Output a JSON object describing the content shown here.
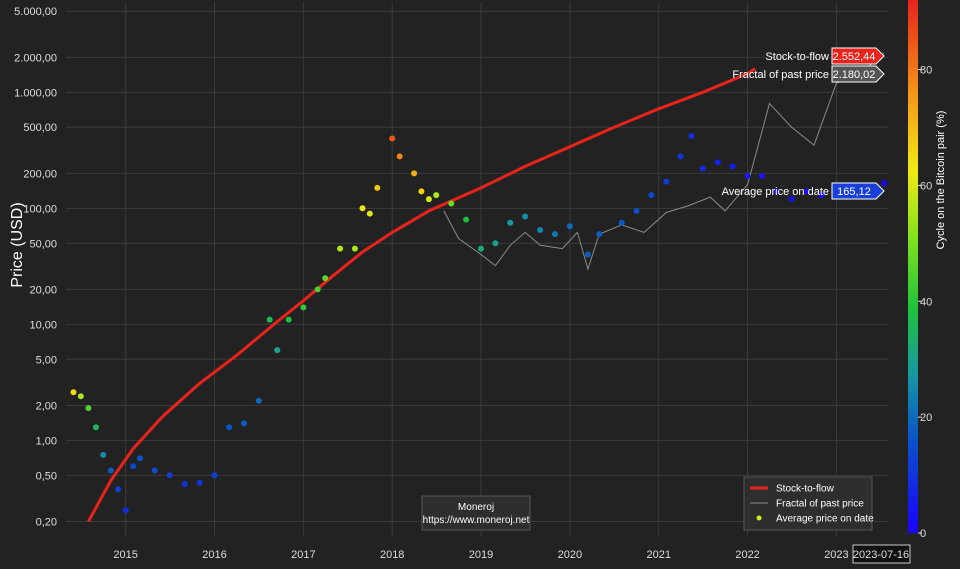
{
  "chart_data": {
    "type": "scatter",
    "ylabel": "Price (USD)",
    "y_scale": "log",
    "ylim": [
      0.15,
      6000
    ],
    "xlim": [
      "2014-05-01",
      "2023-08-01"
    ],
    "y_ticks": [
      {
        "value": 5000,
        "label": "5.000,00"
      },
      {
        "value": 2000,
        "label": "2.000,00"
      },
      {
        "value": 1000,
        "label": "1.000,00"
      },
      {
        "value": 500,
        "label": "500,00"
      },
      {
        "value": 200,
        "label": "200,00"
      },
      {
        "value": 100,
        "label": "100,00"
      },
      {
        "value": 50,
        "label": "50,00"
      },
      {
        "value": 20,
        "label": "20,00"
      },
      {
        "value": 10,
        "label": "10,00"
      },
      {
        "value": 5,
        "label": "5,00"
      },
      {
        "value": 2,
        "label": "2,00"
      },
      {
        "value": 1,
        "label": "1,00"
      },
      {
        "value": 0.5,
        "label": "0,50"
      },
      {
        "value": 0.2,
        "label": "0,20"
      }
    ],
    "x_ticks": [
      "2015",
      "2016",
      "2017",
      "2018",
      "2019",
      "2020",
      "2021",
      "2022",
      "2023"
    ],
    "grid": true,
    "colorbar": {
      "label": "Cycle on the Bitcoin pair (%)",
      "range": [
        0,
        92
      ],
      "ticks": [
        {
          "value": 0,
          "label": "0"
        },
        {
          "value": 20,
          "label": "20"
        },
        {
          "value": 40,
          "label": "40"
        },
        {
          "value": 60,
          "label": "60"
        },
        {
          "value": 80,
          "label": "80"
        }
      ]
    },
    "series": [
      {
        "name": "Stock-to-flow",
        "color": "#e8231c",
        "points": [
          [
            "2014-08-01",
            0.2
          ],
          [
            "2014-11-01",
            0.45
          ],
          [
            "2015-02-01",
            0.85
          ],
          [
            "2015-06-01",
            1.6
          ],
          [
            "2015-11-01",
            3.1
          ],
          [
            "2016-04-01",
            5.4
          ],
          [
            "2016-09-01",
            10
          ],
          [
            "2017-01-01",
            16
          ],
          [
            "2017-05-01",
            26
          ],
          [
            "2017-09-01",
            42
          ],
          [
            "2018-01-01",
            62
          ],
          [
            "2018-06-01",
            95
          ],
          [
            "2019-01-01",
            150
          ],
          [
            "2019-07-01",
            230
          ],
          [
            "2020-01-01",
            340
          ],
          [
            "2020-07-01",
            500
          ],
          [
            "2021-01-01",
            720
          ],
          [
            "2021-07-01",
            1000
          ],
          [
            "2022-01-01",
            1450
          ],
          [
            "2022-02-01",
            1600
          ]
        ]
      },
      {
        "name": "Fractal of past price",
        "color": "#8a8a8a",
        "points": [
          [
            "2018-08-01",
            95
          ],
          [
            "2018-10-01",
            55
          ],
          [
            "2019-01-01",
            40
          ],
          [
            "2019-03-01",
            32
          ],
          [
            "2019-05-01",
            48
          ],
          [
            "2019-07-01",
            62
          ],
          [
            "2019-09-01",
            48
          ],
          [
            "2019-12-01",
            45
          ],
          [
            "2020-02-01",
            62
          ],
          [
            "2020-03-15",
            30
          ],
          [
            "2020-05-01",
            60
          ],
          [
            "2020-08-01",
            72
          ],
          [
            "2020-11-01",
            62
          ],
          [
            "2021-02-01",
            92
          ],
          [
            "2021-05-01",
            105
          ],
          [
            "2021-08-01",
            125
          ],
          [
            "2021-10-01",
            95
          ],
          [
            "2022-01-01",
            160
          ],
          [
            "2022-04-01",
            800
          ],
          [
            "2022-07-01",
            500
          ],
          [
            "2022-10-01",
            350
          ],
          [
            "2023-01-01",
            1200
          ],
          [
            "2023-04-01",
            1400
          ],
          [
            "2023-07-16",
            2180
          ]
        ]
      },
      {
        "name": "Average price on date",
        "color": "#c9f21a",
        "points": [
          [
            "2014-06-01",
            2.6,
            65
          ],
          [
            "2014-07-01",
            2.4,
            55
          ],
          [
            "2014-08-01",
            1.9,
            45
          ],
          [
            "2014-09-01",
            1.3,
            35
          ],
          [
            "2014-10-01",
            0.75,
            25
          ],
          [
            "2014-11-01",
            0.55,
            18
          ],
          [
            "2014-12-01",
            0.38,
            12
          ],
          [
            "2015-01-01",
            0.25,
            8
          ],
          [
            "2015-02-01",
            0.6,
            14
          ],
          [
            "2015-03-01",
            0.7,
            16
          ],
          [
            "2015-05-01",
            0.55,
            15
          ],
          [
            "2015-07-01",
            0.5,
            12
          ],
          [
            "2015-09-01",
            0.42,
            10
          ],
          [
            "2015-11-01",
            0.43,
            10
          ],
          [
            "2016-01-01",
            0.5,
            12
          ],
          [
            "2016-03-01",
            1.3,
            17
          ],
          [
            "2016-05-01",
            1.4,
            18
          ],
          [
            "2016-07-01",
            2.2,
            20
          ],
          [
            "2016-08-15",
            11,
            36
          ],
          [
            "2016-09-15",
            6,
            30
          ],
          [
            "2016-11-01",
            11,
            38
          ],
          [
            "2017-01-01",
            14,
            41
          ],
          [
            "2017-03-01",
            20,
            44
          ],
          [
            "2017-04-01",
            25,
            46
          ],
          [
            "2017-06-01",
            45,
            56
          ],
          [
            "2017-08-01",
            45,
            55
          ],
          [
            "2017-09-01",
            100,
            63
          ],
          [
            "2017-10-01",
            90,
            60
          ],
          [
            "2017-11-01",
            150,
            68
          ],
          [
            "2018-01-01",
            400,
            85
          ],
          [
            "2018-02-01",
            280,
            78
          ],
          [
            "2018-04-01",
            200,
            72
          ],
          [
            "2018-05-01",
            140,
            66
          ],
          [
            "2018-06-01",
            120,
            60
          ],
          [
            "2018-07-01",
            130,
            56
          ],
          [
            "2018-09-01",
            110,
            48
          ],
          [
            "2018-11-01",
            80,
            38
          ],
          [
            "2019-01-01",
            45,
            32
          ],
          [
            "2019-03-01",
            50,
            30
          ],
          [
            "2019-05-01",
            75,
            28
          ],
          [
            "2019-07-01",
            85,
            26
          ],
          [
            "2019-09-01",
            65,
            24
          ],
          [
            "2019-11-01",
            60,
            22
          ],
          [
            "2020-01-01",
            70,
            20
          ],
          [
            "2020-03-15",
            40,
            18
          ],
          [
            "2020-05-01",
            60,
            18
          ],
          [
            "2020-08-01",
            75,
            17
          ],
          [
            "2020-10-01",
            95,
            16
          ],
          [
            "2020-12-01",
            130,
            14
          ],
          [
            "2021-02-01",
            170,
            12
          ],
          [
            "2021-04-01",
            280,
            10
          ],
          [
            "2021-05-15",
            420,
            9
          ],
          [
            "2021-07-01",
            220,
            8
          ],
          [
            "2021-09-01",
            250,
            7
          ],
          [
            "2021-11-01",
            230,
            6
          ],
          [
            "2022-01-01",
            190,
            5
          ],
          [
            "2022-03-01",
            190,
            4
          ],
          [
            "2022-05-01",
            140,
            3
          ],
          [
            "2022-07-01",
            120,
            3
          ],
          [
            "2022-09-01",
            140,
            2
          ],
          [
            "2022-11-01",
            130,
            2
          ],
          [
            "2023-01-01",
            150,
            2
          ],
          [
            "2023-03-01",
            160,
            1
          ],
          [
            "2023-05-01",
            150,
            1
          ],
          [
            "2023-07-16",
            165,
            1
          ]
        ]
      }
    ],
    "price_tags": [
      {
        "series": "Stock-to-flow",
        "label": "Stock-to-flow",
        "value": 2552.44,
        "value_label": "2.552,44",
        "color": "#e8231c"
      },
      {
        "series": "Fractal of past price",
        "label": "Fractal of past price",
        "value": 2180.02,
        "value_label": "2.180,02",
        "color": "#555555"
      },
      {
        "series": "Average price on date",
        "label": "Average price on date",
        "value": 165.12,
        "value_label": "165,12",
        "color": "#1a3fd6"
      }
    ],
    "date_tag": {
      "date": "2023-07-16",
      "label": "2023-07-16"
    },
    "legend": {
      "position": "bottom-right",
      "entries": [
        "Stock-to-flow",
        "Fractal of past price",
        "Average price on date"
      ]
    }
  },
  "watermark": {
    "line1": "Moneroj",
    "line2": "https://www.moneroj.net"
  }
}
